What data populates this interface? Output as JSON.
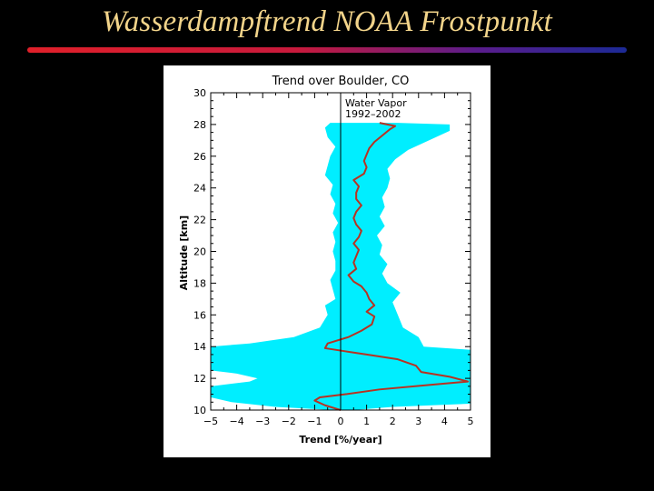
{
  "slide": {
    "title": "Wasserdampftrend NOAA Frostpunkt"
  },
  "colors": {
    "band": "#00eeff",
    "trend_line": "#b83222",
    "title_text": "#f2d48a",
    "rule_start": "#e0202a",
    "rule_end": "#1c2a96"
  },
  "chart_data": {
    "type": "line",
    "title": "Trend over Boulder, CO",
    "xlabel": "Trend [%/year]",
    "ylabel": "Altitude [km]",
    "xlim": [
      -5,
      5
    ],
    "ylim": [
      10,
      30
    ],
    "xticks": [
      -5,
      -4,
      -3,
      -2,
      -1,
      0,
      1,
      2,
      3,
      4,
      5
    ],
    "yticks": [
      10,
      12,
      14,
      16,
      18,
      20,
      22,
      24,
      26,
      28,
      30
    ],
    "annotation": [
      "Water Vapor",
      "1992–2002"
    ],
    "grid": false,
    "series": [
      {
        "values": [
          [
            0.0,
            10.0
          ],
          [
            -0.6,
            10.3
          ],
          [
            -1.0,
            10.6
          ],
          [
            -0.8,
            10.8
          ],
          [
            0.2,
            11.0
          ],
          [
            1.5,
            11.3
          ],
          [
            3.5,
            11.6
          ],
          [
            4.9,
            11.8
          ],
          [
            4.2,
            12.1
          ],
          [
            3.1,
            12.4
          ],
          [
            2.9,
            12.8
          ],
          [
            2.2,
            13.2
          ],
          [
            1.0,
            13.5
          ],
          [
            0.2,
            13.7
          ],
          [
            -0.6,
            13.9
          ],
          [
            -0.5,
            14.2
          ],
          [
            0.3,
            14.6
          ],
          [
            0.8,
            15.0
          ],
          [
            1.2,
            15.4
          ],
          [
            1.3,
            15.9
          ],
          [
            1.0,
            16.2
          ],
          [
            1.3,
            16.6
          ],
          [
            1.1,
            17.0
          ],
          [
            1.0,
            17.4
          ],
          [
            0.8,
            17.8
          ],
          [
            0.5,
            18.1
          ],
          [
            0.3,
            18.5
          ],
          [
            0.6,
            18.9
          ],
          [
            0.5,
            19.3
          ],
          [
            0.6,
            19.7
          ],
          [
            0.7,
            20.1
          ],
          [
            0.5,
            20.5
          ],
          [
            0.7,
            20.9
          ],
          [
            0.8,
            21.3
          ],
          [
            0.6,
            21.7
          ],
          [
            0.5,
            22.1
          ],
          [
            0.6,
            22.5
          ],
          [
            0.8,
            22.9
          ],
          [
            0.6,
            23.3
          ],
          [
            0.6,
            23.7
          ],
          [
            0.7,
            24.1
          ],
          [
            0.5,
            24.5
          ],
          [
            0.9,
            24.9
          ],
          [
            1.0,
            25.3
          ],
          [
            0.9,
            25.7
          ],
          [
            1.0,
            26.1
          ],
          [
            1.1,
            26.5
          ],
          [
            1.3,
            26.9
          ],
          [
            1.6,
            27.3
          ],
          [
            1.9,
            27.7
          ],
          [
            2.1,
            27.9
          ],
          [
            1.5,
            28.1
          ]
        ]
      }
    ],
    "band": {
      "lower": [
        [
          -0.3,
          10.0
        ],
        [
          -2.5,
          10.2
        ],
        [
          -4.2,
          10.5
        ],
        [
          -5.0,
          10.8
        ],
        [
          -5.0,
          11.5
        ],
        [
          -3.5,
          11.8
        ],
        [
          -3.2,
          12.0
        ],
        [
          -4.0,
          12.3
        ],
        [
          -5.0,
          12.5
        ],
        [
          -5.0,
          14.0
        ],
        [
          -3.5,
          14.2
        ],
        [
          -1.8,
          14.6
        ],
        [
          -0.8,
          15.2
        ],
        [
          -0.5,
          16.0
        ],
        [
          -0.6,
          16.6
        ],
        [
          -0.2,
          17.0
        ],
        [
          -0.3,
          17.6
        ],
        [
          -0.4,
          18.2
        ],
        [
          -0.2,
          18.8
        ],
        [
          -0.2,
          19.4
        ],
        [
          -0.3,
          20.0
        ],
        [
          -0.2,
          20.6
        ],
        [
          -0.3,
          21.2
        ],
        [
          -0.1,
          21.8
        ],
        [
          -0.3,
          22.4
        ],
        [
          -0.2,
          23.0
        ],
        [
          -0.4,
          23.6
        ],
        [
          -0.3,
          24.2
        ],
        [
          -0.6,
          24.8
        ],
        [
          -0.5,
          25.4
        ],
        [
          -0.4,
          26.0
        ],
        [
          -0.2,
          26.6
        ],
        [
          -0.5,
          27.2
        ],
        [
          -0.6,
          27.8
        ],
        [
          -0.4,
          28.1
        ]
      ],
      "upper": [
        [
          0.5,
          10.0
        ],
        [
          2.0,
          10.2
        ],
        [
          5.0,
          10.4
        ],
        [
          5.0,
          13.8
        ],
        [
          3.2,
          14.0
        ],
        [
          3.0,
          14.6
        ],
        [
          2.4,
          15.2
        ],
        [
          2.2,
          16.0
        ],
        [
          2.0,
          16.8
        ],
        [
          2.3,
          17.4
        ],
        [
          1.8,
          18.0
        ],
        [
          1.6,
          18.6
        ],
        [
          1.8,
          19.2
        ],
        [
          1.5,
          19.8
        ],
        [
          1.6,
          20.4
        ],
        [
          1.4,
          21.0
        ],
        [
          1.7,
          21.6
        ],
        [
          1.5,
          22.2
        ],
        [
          1.7,
          22.8
        ],
        [
          1.6,
          23.4
        ],
        [
          1.8,
          24.0
        ],
        [
          1.9,
          24.6
        ],
        [
          1.8,
          25.2
        ],
        [
          2.1,
          25.8
        ],
        [
          2.6,
          26.4
        ],
        [
          3.4,
          27.0
        ],
        [
          4.2,
          27.6
        ],
        [
          4.2,
          28.0
        ],
        [
          2.2,
          28.1
        ]
      ]
    }
  }
}
